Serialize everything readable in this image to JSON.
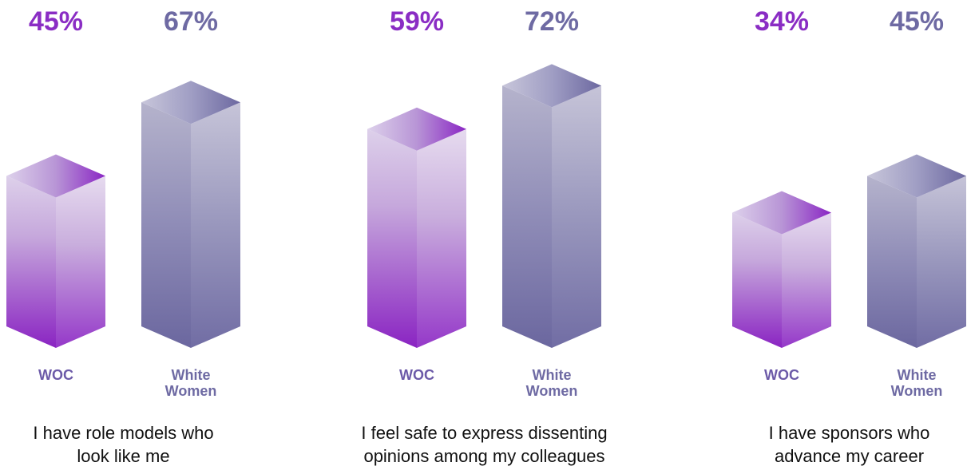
{
  "chart_data": {
    "type": "bar",
    "style": "3d-columns",
    "groups": [
      {
        "question_lines": [
          "I have role models who",
          "look like me"
        ],
        "bars": [
          {
            "category_lines": [
              "WOC"
            ],
            "value": 45,
            "value_label": "45%"
          },
          {
            "category_lines": [
              "White",
              "Women"
            ],
            "value": 67,
            "value_label": "67%"
          }
        ]
      },
      {
        "question_lines": [
          "I feel safe to express dissenting",
          "opinions among my colleagues"
        ],
        "bars": [
          {
            "category_lines": [
              "WOC"
            ],
            "value": 59,
            "value_label": "59%"
          },
          {
            "category_lines": [
              "White",
              "Women"
            ],
            "value": 72,
            "value_label": "72%"
          }
        ]
      },
      {
        "question_lines": [
          "I have sponsors who",
          "advance my career"
        ],
        "bars": [
          {
            "category_lines": [
              "WOC"
            ],
            "value": 34,
            "value_label": "34%"
          },
          {
            "category_lines": [
              "White",
              "Women"
            ],
            "value": 45,
            "value_label": "45%"
          }
        ]
      }
    ],
    "colors": {
      "woc": "#8a2dc4",
      "white_women": "#6e6aa3",
      "woc_label": "#6c5aa8",
      "white_women_label": "#6e6aa3"
    },
    "ylim": [
      0,
      100
    ],
    "grid": false,
    "legend": "none"
  }
}
